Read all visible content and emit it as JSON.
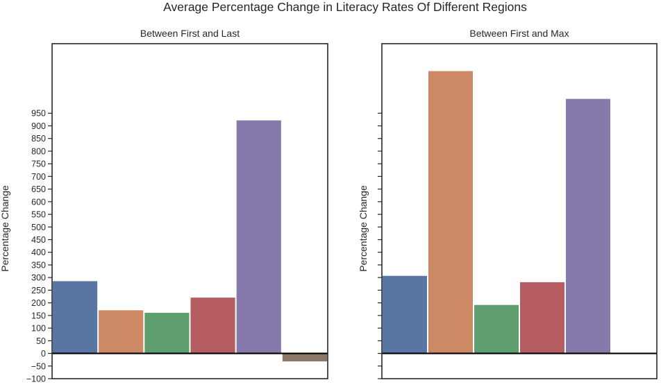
{
  "chart_data": {
    "type": "bar",
    "title": "Average Percentage Change in Literacy Rates Of Different Regions",
    "panels": [
      {
        "subtitle": "Between First and Last",
        "ylabel": "Percentage Change",
        "ylim": [
          -100,
          1225
        ],
        "yticks": [
          -100,
          -50,
          0,
          50,
          100,
          150,
          200,
          250,
          300,
          350,
          400,
          450,
          500,
          550,
          600,
          650,
          700,
          750,
          800,
          850,
          900,
          950
        ],
        "show_tick_labels": true,
        "values": [
          287,
          172,
          162,
          222,
          923,
          -33
        ],
        "colors": [
          "#5875a4",
          "#cc8963",
          "#5f9e6e",
          "#b55d60",
          "#857aab",
          "#8d7866"
        ]
      },
      {
        "subtitle": "Between First and Max",
        "ylabel": "Percentage Change",
        "ylim": [
          -100,
          1225
        ],
        "yticks": [
          -100,
          -50,
          0,
          50,
          100,
          150,
          200,
          250,
          300,
          350,
          400,
          450,
          500,
          550,
          600,
          650,
          700,
          750,
          800,
          850,
          900,
          950
        ],
        "show_tick_labels": false,
        "values": [
          308,
          1118,
          193,
          283,
          1008
        ],
        "colors": [
          "#5875a4",
          "#cc8963",
          "#5f9e6e",
          "#b55d60",
          "#857aab"
        ]
      }
    ],
    "zero_line": true,
    "grid": false
  }
}
